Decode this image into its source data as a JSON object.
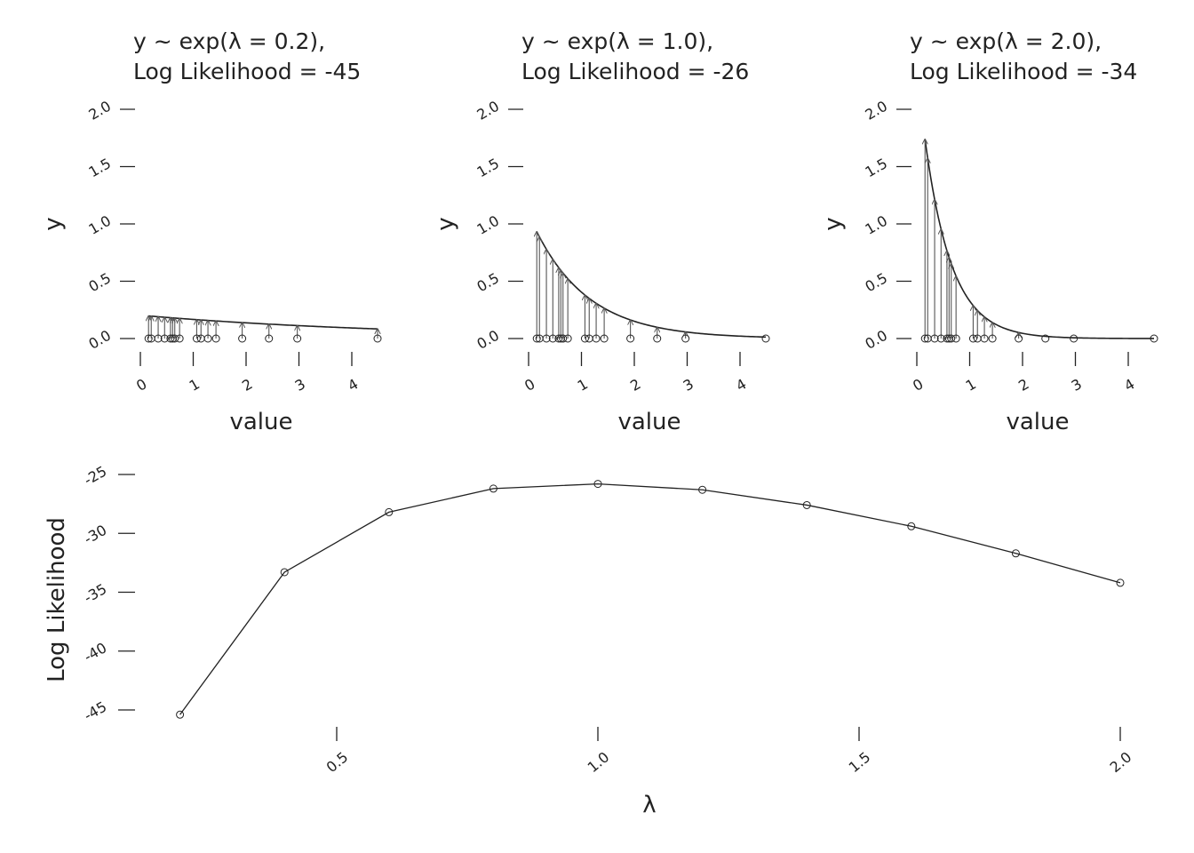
{
  "colors": {
    "ink": "#222222",
    "arrow": "#555555",
    "background": "#ffffff"
  },
  "observations": [
    0.07,
    0.12,
    0.25,
    0.37,
    0.48,
    0.52,
    0.56,
    0.65,
    0.97,
    1.05,
    1.18,
    1.33,
    1.82,
    2.32,
    2.85,
    4.35
  ],
  "chart_data": [
    {
      "type": "line",
      "title_line1": "y ~ exp(λ = 0.2),",
      "title_line2": "Log Likelihood =  -45",
      "xlabel": "value",
      "ylabel": "y",
      "lambda": 0.2,
      "xlim": [
        -0.08,
        4.4
      ],
      "ylim": [
        0,
        2
      ],
      "xticks": [
        0,
        1,
        2,
        3,
        4
      ],
      "yticks": [
        0,
        0.5,
        1,
        1.5,
        2
      ],
      "ytick_labels": [
        "0.0",
        "0.5",
        "1.0",
        "1.5",
        "2.0"
      ]
    },
    {
      "type": "line",
      "title_line1": "y ~ exp(λ = 1.0),",
      "title_line2": "Log Likelihood =  -26",
      "xlabel": "value",
      "ylabel": "y",
      "lambda": 1.0,
      "xlim": [
        -0.08,
        4.4
      ],
      "ylim": [
        0,
        2
      ],
      "xticks": [
        0,
        1,
        2,
        3,
        4
      ],
      "yticks": [
        0,
        0.5,
        1,
        1.5,
        2
      ],
      "ytick_labels": [
        "0.0",
        "0.5",
        "1.0",
        "1.5",
        "2.0"
      ]
    },
    {
      "type": "line",
      "title_line1": "y ~ exp(λ = 2.0),",
      "title_line2": "Log Likelihood =  -34",
      "xlabel": "value",
      "ylabel": "y",
      "lambda": 2.0,
      "xlim": [
        -0.08,
        4.4
      ],
      "ylim": [
        0,
        2
      ],
      "xticks": [
        0,
        1,
        2,
        3,
        4
      ],
      "yticks": [
        0,
        0.5,
        1,
        1.5,
        2
      ],
      "ytick_labels": [
        "0.0",
        "0.5",
        "1.0",
        "1.5",
        "2.0"
      ]
    },
    {
      "type": "line",
      "xlabel": "λ",
      "ylabel": "Log Likelihood",
      "x": [
        0.2,
        0.4,
        0.6,
        0.8,
        1.0,
        1.2,
        1.4,
        1.6,
        1.8,
        2.0
      ],
      "y": [
        -45.4,
        -33.3,
        -28.2,
        -26.2,
        -25.8,
        -26.3,
        -27.6,
        -29.4,
        -31.7,
        -34.2
      ],
      "xlim": [
        0.15,
        2.05
      ],
      "ylim": [
        -46.5,
        -24.5
      ],
      "xticks": [
        0.5,
        1.0,
        1.5,
        2.0
      ],
      "xtick_labels": [
        "0.5",
        "1.0",
        "1.5",
        "2.0"
      ],
      "yticks": [
        -45,
        -40,
        -35,
        -30,
        -25
      ],
      "ytick_labels": [
        "-45",
        "-40",
        "-35",
        "-30",
        "-25"
      ]
    }
  ]
}
